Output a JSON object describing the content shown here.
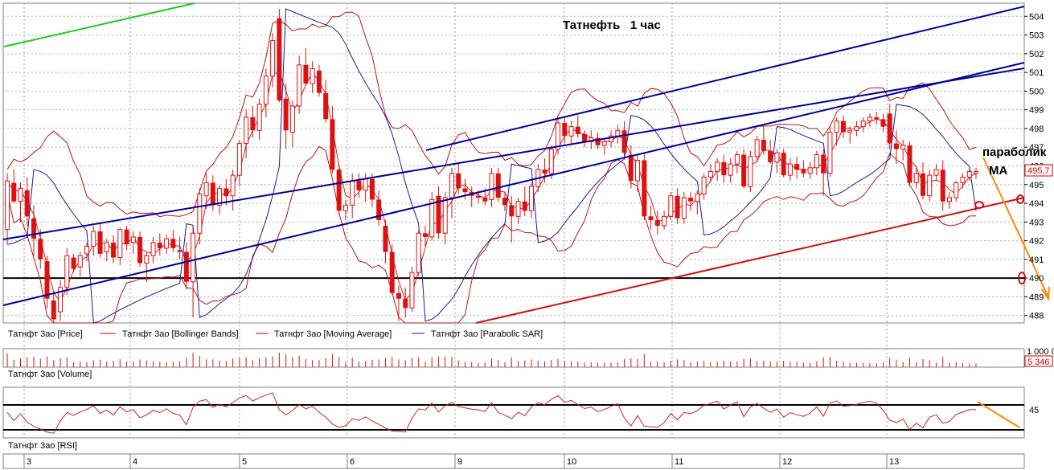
{
  "chart_data": {
    "type": "candlestick",
    "title": "Татнефть   1 час",
    "annotations": {
      "parabolic": "параболик",
      "ma": "МА"
    },
    "price_axis": {
      "ticks": [
        "504",
        "503",
        "502",
        "501",
        "500",
        "499",
        "498",
        "497",
        "496",
        "495",
        "494",
        "493",
        "492",
        "491",
        "490",
        "489",
        "488"
      ],
      "last_price": "495,7",
      "range": [
        487.6,
        504.7
      ]
    },
    "volume_axis": {
      "tick": "1 000 0",
      "last_value": "5 346"
    },
    "rsi_axis": {
      "tick": "45"
    },
    "dates": [
      "3",
      "4",
      "5",
      "6",
      "9",
      "10",
      "11",
      "12",
      "13"
    ],
    "legends": {
      "price": [
        {
          "label": "Татнфт 3ао [Price]",
          "color": "#cc0000"
        },
        {
          "label": "Татнфт 3ао [Bollinger Bands]",
          "color": "#cc0000"
        },
        {
          "label": "Татнфт 3ао [Moving Average]",
          "color": "#cc0000"
        },
        {
          "label": "Татнфт 3ао [Parabolic SAR]",
          "color": "#1a1a99"
        }
      ],
      "volume": "Татнфт 3ао [Volume]",
      "rsi": "Татнфт 3ао [RSI]"
    },
    "colors": {
      "candle": "#dd1111",
      "bollinger": "#bb1111",
      "moving_average": "#cc2222",
      "parabolic_sar": "#1a1a99",
      "channel": "#000099",
      "support": "#cc1111",
      "forecast": "#ff8800",
      "green_line": "#22cc22"
    },
    "horizontal_level": 490,
    "candles": [
      [
        492.6,
        495.6,
        491.8,
        495.2
      ],
      [
        495.1,
        495.8,
        494,
        494.1
      ],
      [
        494.1,
        495.1,
        493,
        494.8
      ],
      [
        494.7,
        495.4,
        492.8,
        493.3
      ],
      [
        493.2,
        493.9,
        491.2,
        492.1
      ],
      [
        492.1,
        492.6,
        490.5,
        491
      ],
      [
        490.9,
        491.2,
        488.4,
        488.9
      ],
      [
        488.8,
        489.3,
        487.6,
        487.8
      ],
      [
        488.2,
        489.9,
        487.7,
        489.5
      ],
      [
        489.5,
        491.6,
        489.1,
        491.2
      ],
      [
        491.1,
        491.3,
        490.3,
        490.5
      ],
      [
        490.6,
        491.4,
        490.1,
        491.2
      ],
      [
        491.3,
        491.9,
        490.9,
        491.7
      ],
      [
        491.7,
        492.8,
        491.2,
        492.5
      ],
      [
        492.5,
        492.9,
        491.1,
        491.3
      ],
      [
        491.4,
        492.1,
        490.9,
        491.9
      ],
      [
        491.9,
        492.3,
        490.8,
        491.1
      ],
      [
        491.1,
        492.7,
        490.7,
        492.6
      ],
      [
        492.6,
        492.8,
        491.5,
        491.8
      ],
      [
        491.9,
        492.5,
        491.3,
        492.2
      ],
      [
        492.2,
        492.5,
        490.6,
        490.8
      ],
      [
        490.8,
        491.4,
        489.8,
        491.2
      ],
      [
        491.2,
        492.2,
        490.8,
        491.9
      ],
      [
        491.9,
        492.4,
        491.2,
        491.6
      ],
      [
        491.6,
        492.3,
        491.3,
        492.1
      ],
      [
        492.1,
        492.6,
        491.4,
        491.6
      ],
      [
        491.5,
        492.2,
        491,
        491.4
      ],
      [
        491.4,
        491.9,
        489.4,
        489.8
      ],
      [
        489.8,
        492.8,
        487.9,
        492.4
      ],
      [
        492.4,
        494.8,
        491.8,
        494.5
      ],
      [
        494.4,
        495.6,
        493.7,
        495.1
      ],
      [
        495.1,
        495.5,
        493.6,
        493.9
      ],
      [
        493.9,
        495,
        493.4,
        494.8
      ],
      [
        494.8,
        495.3,
        493.9,
        494.4
      ],
      [
        494.4,
        495.8,
        493.6,
        495.5
      ],
      [
        495.5,
        497.4,
        494.9,
        497.2
      ],
      [
        497.2,
        499,
        496.4,
        498.6
      ],
      [
        498.6,
        499.2,
        497.5,
        497.9
      ],
      [
        497.9,
        499.6,
        497.4,
        499.3
      ],
      [
        499.3,
        501.2,
        498.6,
        500.8
      ],
      [
        500.8,
        503.1,
        500.2,
        502.7
      ],
      [
        503.9,
        504.4,
        499.4,
        499.5
      ],
      [
        499.6,
        500.4,
        496.9,
        497.9
      ],
      [
        497.8,
        499.5,
        497,
        499.2
      ],
      [
        499.2,
        501.9,
        498.8,
        501.4
      ],
      [
        501.4,
        502.3,
        500.3,
        500.4
      ],
      [
        500.4,
        501.6,
        499.9,
        501.2
      ],
      [
        501.1,
        501.4,
        499.7,
        499.9
      ],
      [
        499.9,
        500.6,
        498.3,
        498.5
      ],
      [
        498.5,
        499.2,
        495.6,
        495.8
      ],
      [
        495.8,
        496.1,
        493.4,
        493.6
      ],
      [
        493.6,
        494.2,
        493.1,
        493.9
      ],
      [
        493.9,
        495.6,
        493.2,
        495.2
      ],
      [
        495.2,
        495.6,
        494.3,
        494.7
      ],
      [
        494.7,
        495.6,
        494.1,
        495.3
      ],
      [
        495.3,
        495.6,
        493.8,
        494.2
      ],
      [
        494.2,
        494.7,
        492.8,
        493.1
      ],
      [
        492.8,
        493.1,
        490.8,
        491.4
      ],
      [
        491.4,
        491.8,
        489.1,
        489.2
      ],
      [
        489.2,
        489.6,
        487.7,
        488.9
      ],
      [
        488.9,
        489.5,
        487.9,
        488.4
      ],
      [
        488.4,
        490.6,
        488.2,
        490.3
      ],
      [
        490.3,
        492.6,
        490.1,
        492.4
      ],
      [
        492.4,
        492.8,
        491.7,
        492.2
      ],
      [
        492.2,
        494.6,
        492,
        494.2
      ],
      [
        494.4,
        494.9,
        492.1,
        492.4
      ],
      [
        492.4,
        494.6,
        491.8,
        494.3
      ],
      [
        494.3,
        495.9,
        493.2,
        495.6
      ],
      [
        495.6,
        496.1,
        494.5,
        494.8
      ],
      [
        494.8,
        495.3,
        494.2,
        494.6
      ],
      [
        494.6,
        494.9,
        493.8,
        494.4
      ],
      [
        494.4,
        494.7,
        494,
        494.3
      ],
      [
        494.3,
        494.8,
        493.9,
        494.1
      ],
      [
        494.2,
        495.9,
        493.8,
        495.6
      ],
      [
        495.6,
        495.9,
        494.1,
        494.3
      ],
      [
        494.3,
        494.6,
        493.6,
        493.9
      ],
      [
        493.9,
        494.4,
        491.9,
        493.3
      ],
      [
        493.3,
        494.3,
        492.9,
        494.1
      ],
      [
        494.1,
        494.9,
        493.3,
        493.6
      ],
      [
        493.6,
        495.1,
        493.2,
        494.9
      ],
      [
        494.9,
        496.1,
        494.6,
        495.8
      ],
      [
        495.8,
        496.4,
        495.1,
        495.6
      ],
      [
        495.6,
        497.1,
        495.3,
        496.9
      ],
      [
        496.9,
        498.6,
        496.6,
        498.3
      ],
      [
        498.3,
        498.6,
        497.2,
        497.6
      ],
      [
        497.6,
        498.4,
        497.1,
        498.1
      ],
      [
        498.1,
        498.7,
        497.5,
        497.7
      ],
      [
        497.7,
        497.9,
        497,
        497.3
      ],
      [
        497.3,
        497.9,
        496.9,
        497.5
      ],
      [
        497.5,
        497.8,
        496.9,
        497.1
      ],
      [
        497.1,
        497.5,
        496.6,
        497.3
      ],
      [
        497.3,
        497.9,
        497,
        497.6
      ],
      [
        497.6,
        498.2,
        497.2,
        497.9
      ],
      [
        497.9,
        498.4,
        496.4,
        496.7
      ],
      [
        496.6,
        497.1,
        494.8,
        495.2
      ],
      [
        495.2,
        496.6,
        494.6,
        496.3
      ],
      [
        496.3,
        496.7,
        493.1,
        493.3
      ],
      [
        493.3,
        493.9,
        492.6,
        493.1
      ],
      [
        493.1,
        493.6,
        492.3,
        492.8
      ],
      [
        492.8,
        493.6,
        492.6,
        493.3
      ],
      [
        493.3,
        494.6,
        493.1,
        494.4
      ],
      [
        494.4,
        494.8,
        492.9,
        493.2
      ],
      [
        493.2,
        494.6,
        492.9,
        494.3
      ],
      [
        494.3,
        494.6,
        493.6,
        494.1
      ],
      [
        494.1,
        494.7,
        493.4,
        494.5
      ],
      [
        494.5,
        495.6,
        494.2,
        495.4
      ],
      [
        495.4,
        496.1,
        495.1,
        495.7
      ],
      [
        495.7,
        496.4,
        495.2,
        496.2
      ],
      [
        496.2,
        496.6,
        495.1,
        495.5
      ],
      [
        495.5,
        496.4,
        495.1,
        496.1
      ],
      [
        496.1,
        496.8,
        495.6,
        496.6
      ],
      [
        496.6,
        496.9,
        494.8,
        494.9
      ],
      [
        494.9,
        496.8,
        494.6,
        496.5
      ],
      [
        496.5,
        497.6,
        496.2,
        497.4
      ],
      [
        497.4,
        498.1,
        496.6,
        496.8
      ],
      [
        496.8,
        497.4,
        496.1,
        496.2
      ],
      [
        496.2,
        496.9,
        495.6,
        496.7
      ],
      [
        496.7,
        496.9,
        495.4,
        495.5
      ],
      [
        495.5,
        496.4,
        495.2,
        496.1
      ],
      [
        496.1,
        496.5,
        495.3,
        495.8
      ],
      [
        495.8,
        496.3,
        495.4,
        495.6
      ],
      [
        495.6,
        496.2,
        495.3,
        495.9
      ],
      [
        495.9,
        496.8,
        495.5,
        496.6
      ],
      [
        496.6,
        496.9,
        494.4,
        495.6
      ],
      [
        495.6,
        498.1,
        495.4,
        497.8
      ],
      [
        497.8,
        498.6,
        497.1,
        498.4
      ],
      [
        498.4,
        498.7,
        497.5,
        497.8
      ],
      [
        497.8,
        498.1,
        497.2,
        497.9
      ],
      [
        497.9,
        498.4,
        497.6,
        498.1
      ],
      [
        498.1,
        498.6,
        497.8,
        498.4
      ],
      [
        498.4,
        498.8,
        498.1,
        498.6
      ],
      [
        498.6,
        498.9,
        498.2,
        498.5
      ],
      [
        498.5,
        498.8,
        497.8,
        498.1
      ],
      [
        498.8,
        499.3,
        496.9,
        497.2
      ],
      [
        497.2,
        497.9,
        496.1,
        496.9
      ],
      [
        496.9,
        497.4,
        496.3,
        497.1
      ],
      [
        497.1,
        497.3,
        494.9,
        495.1
      ],
      [
        495.1,
        495.9,
        494.8,
        495.6
      ],
      [
        495.6,
        496.2,
        494.2,
        494.4
      ],
      [
        494.4,
        495.8,
        494.1,
        495.5
      ],
      [
        495.5,
        496.1,
        495.2,
        495.8
      ],
      [
        495.8,
        496.3,
        493.6,
        494.1
      ],
      [
        494.1,
        494.6,
        493.7,
        494.3
      ],
      [
        494.3,
        495.2,
        494.1,
        495.1
      ],
      [
        495.1,
        495.6,
        494.8,
        495.4
      ],
      [
        495.4,
        495.8,
        495.2,
        495.7
      ],
      [
        495.6,
        495.9,
        495.3,
        495.7
      ]
    ]
  }
}
